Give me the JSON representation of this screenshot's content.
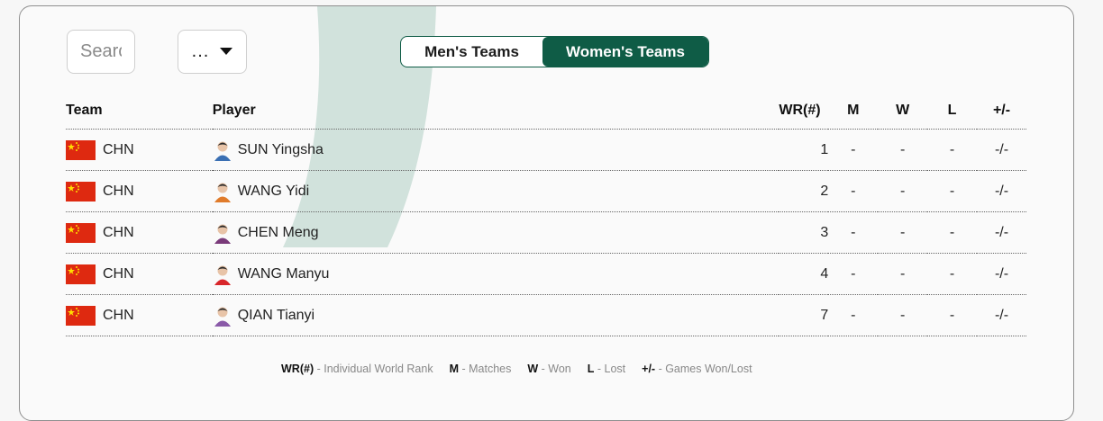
{
  "filters": {
    "search_placeholder": "Search",
    "dropdown_value": "..."
  },
  "toggle": {
    "men": "Men's Teams",
    "women": "Women's Teams",
    "active": "women"
  },
  "table": {
    "headers": [
      "Team",
      "Player",
      "WR(#)",
      "M",
      "W",
      "L",
      "+/-"
    ],
    "rows": [
      {
        "team": "CHN",
        "player": "SUN Yingsha",
        "wr": "1",
        "m": "-",
        "w": "-",
        "l": "-",
        "pm": "-/-"
      },
      {
        "team": "CHN",
        "player": "WANG Yidi",
        "wr": "2",
        "m": "-",
        "w": "-",
        "l": "-",
        "pm": "-/-"
      },
      {
        "team": "CHN",
        "player": "CHEN Meng",
        "wr": "3",
        "m": "-",
        "w": "-",
        "l": "-",
        "pm": "-/-"
      },
      {
        "team": "CHN",
        "player": "WANG Manyu",
        "wr": "4",
        "m": "-",
        "w": "-",
        "l": "-",
        "pm": "-/-"
      },
      {
        "team": "CHN",
        "player": "QIAN Tianyi",
        "wr": "7",
        "m": "-",
        "w": "-",
        "l": "-",
        "pm": "-/-"
      }
    ]
  },
  "legend": {
    "wr_key": "WR(#)",
    "wr_text": " - Individual World Rank",
    "m_key": "M",
    "m_text": " - Matches",
    "w_key": "W",
    "w_text": " - Won",
    "l_key": "L",
    "l_text": " - Lost",
    "pm_key": "+/-",
    "pm_text": " - Games Won/Lost"
  },
  "colors": {
    "accent": "#0f5c46",
    "flag_red": "#de2910",
    "flag_star": "#ffde00",
    "swoosh": "#c9ddd6"
  },
  "icons": {
    "dropdown": "caret-down-icon",
    "flag": "china-flag-icon",
    "avatar": "player-avatar-icon"
  }
}
